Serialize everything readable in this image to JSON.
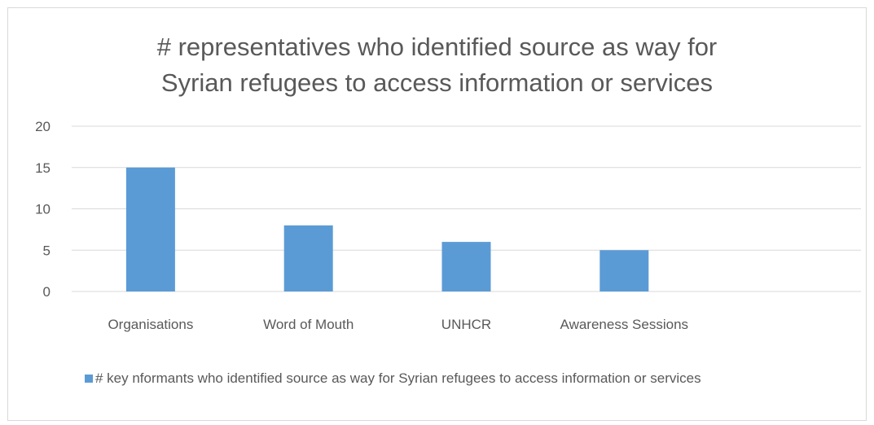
{
  "chart_data": {
    "type": "bar",
    "title": "# representatives who identified source as way for Syrian refugees to access information or services",
    "title_lines": [
      "# representatives who identified source as way for",
      "Syrian refugees to access information or services"
    ],
    "categories": [
      "Organisations",
      "Word of Mouth",
      "UNHCR",
      "Awareness Sessions"
    ],
    "series": [
      {
        "name": "# key nformants who identified source as way for Syrian refugees to access information or services",
        "values": [
          15,
          8,
          6,
          5
        ],
        "color": "#5b9bd5"
      }
    ],
    "ylim": [
      0,
      20
    ],
    "yticks": [
      0,
      5,
      10,
      15,
      20
    ],
    "xlabel": "",
    "ylabel": "",
    "grid": true,
    "legend_position": "bottom"
  },
  "colors": {
    "bar": "#5b9bd5",
    "grid": "#d9d9d9",
    "text": "#595959",
    "border": "#d9d9d9"
  }
}
